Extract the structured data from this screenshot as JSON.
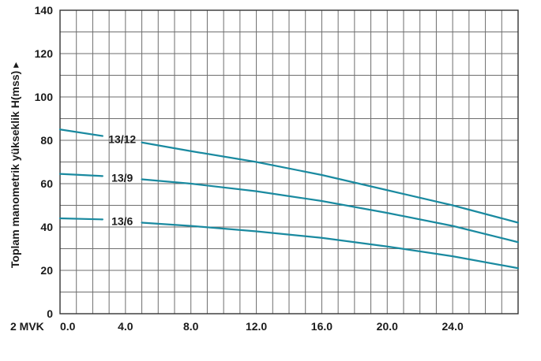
{
  "chart_data": {
    "type": "line",
    "x_axis_prefix": "2 MVK",
    "ylabel": "Toplam manometrik yükseklik H(mss) ▸",
    "xlim": [
      0,
      28
    ],
    "ylim": [
      0,
      140
    ],
    "x_ticks": [
      0,
      4,
      8,
      12,
      16,
      20,
      24
    ],
    "x_tick_labels": [
      "0.0",
      "4.0",
      "8.0",
      "12.0",
      "16.0",
      "20.0",
      "24.0"
    ],
    "y_ticks": [
      0,
      20,
      40,
      60,
      80,
      100,
      120,
      140
    ],
    "y_tick_labels": [
      "0",
      "20",
      "40",
      "60",
      "80",
      "100",
      "120",
      "140"
    ],
    "grid": true,
    "series": [
      {
        "name": "13/12",
        "x": [
          0,
          2.6,
          5,
          8,
          12,
          16,
          20,
          24,
          28
        ],
        "y": [
          85,
          82,
          79,
          75,
          70,
          64,
          57,
          50,
          42
        ]
      },
      {
        "name": "13/9",
        "x": [
          0,
          2.6,
          5,
          8,
          12,
          16,
          20,
          24,
          28
        ],
        "y": [
          64.5,
          63.5,
          62,
          60,
          56.5,
          52,
          46.5,
          40.5,
          33
        ]
      },
      {
        "name": "13/6",
        "x": [
          0,
          2.6,
          5,
          8,
          12,
          16,
          20,
          24,
          28
        ],
        "y": [
          44,
          43.5,
          42,
          40.5,
          38,
          35,
          31,
          26.5,
          21
        ]
      }
    ],
    "line_color": "#1a8aa0"
  }
}
